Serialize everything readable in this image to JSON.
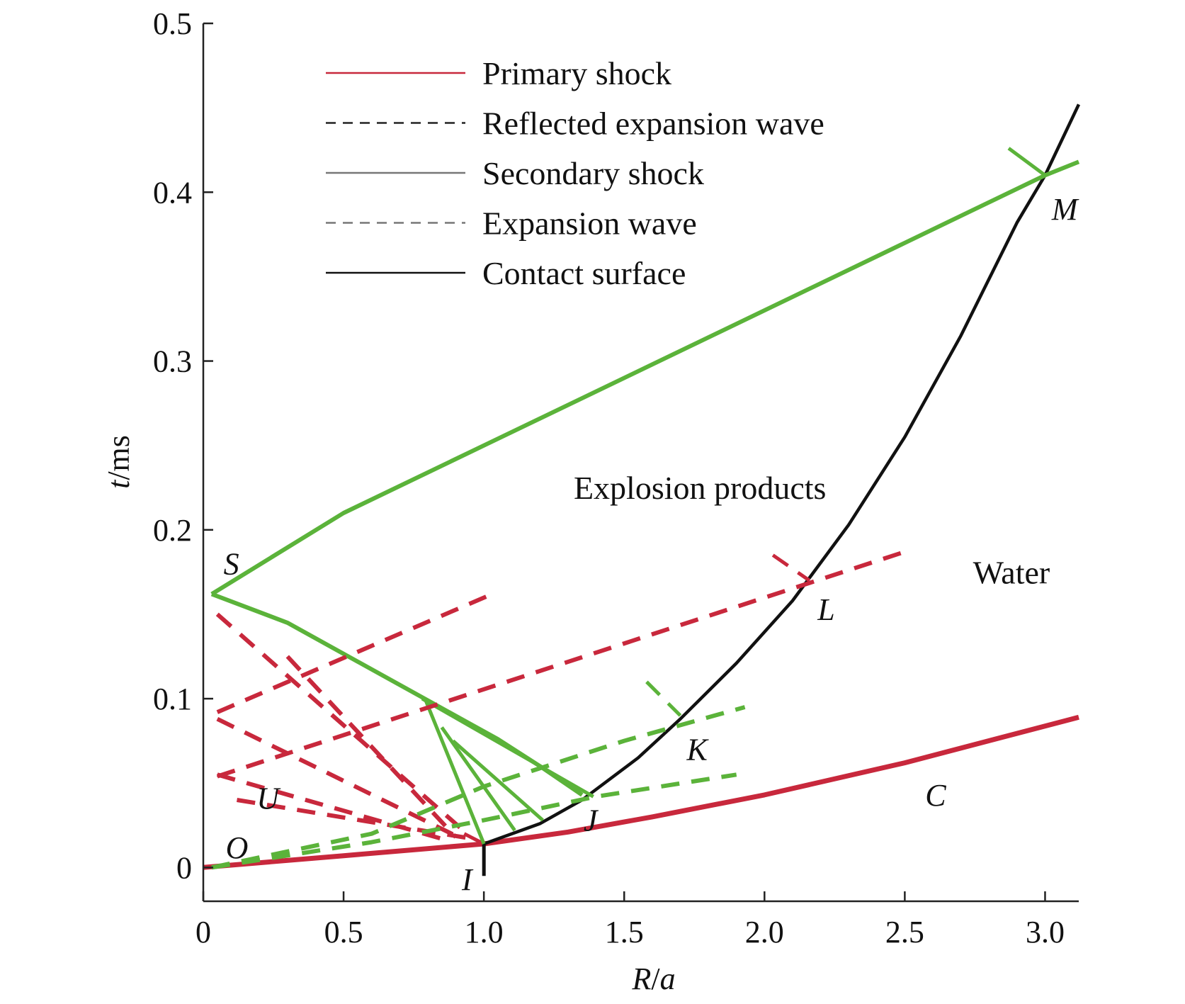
{
  "chart_data": {
    "type": "line",
    "title": "",
    "xlabel": {
      "var": "R",
      "sep": "/",
      "unit": "a"
    },
    "ylabel": {
      "var": "t",
      "sep": "/",
      "unit": "ms"
    },
    "xlim": [
      0,
      3.12
    ],
    "ylim": [
      -0.02,
      0.5
    ],
    "xticks": [
      {
        "value": 0,
        "label": "0"
      },
      {
        "value": 0.5,
        "label": "0.5"
      },
      {
        "value": 1.0,
        "label": "1.0"
      },
      {
        "value": 1.5,
        "label": "1.5"
      },
      {
        "value": 2.0,
        "label": "2.0"
      },
      {
        "value": 2.5,
        "label": "2.5"
      },
      {
        "value": 3.0,
        "label": "3.0"
      }
    ],
    "yticks": [
      {
        "value": 0,
        "label": "0"
      },
      {
        "value": 0.1,
        "label": "0.1"
      },
      {
        "value": 0.2,
        "label": "0.2"
      },
      {
        "value": 0.3,
        "label": "0.3"
      },
      {
        "value": 0.4,
        "label": "0.4"
      },
      {
        "value": 0.5,
        "label": "0.5"
      }
    ],
    "grid": false,
    "legend_position": "top",
    "legend": [
      {
        "label": "Primary shock",
        "color": "#c8283c",
        "style": "solid"
      },
      {
        "label": "Reflected expansion wave",
        "color": "#222222",
        "style": "dashed"
      },
      {
        "label": "Secondary shock",
        "color": "#777777",
        "style": "solid"
      },
      {
        "label": "Expansion wave",
        "color": "#777777",
        "style": "dashed"
      },
      {
        "label": "Contact surface",
        "color": "#111111",
        "style": "solid"
      }
    ],
    "colors": {
      "red": "#c8283c",
      "green": "#5bb33a",
      "black": "#111111"
    },
    "region_labels": [
      {
        "text": "Explosion products",
        "x": 1.77,
        "y": 0.225
      },
      {
        "text": "Water",
        "x": 2.88,
        "y": 0.175
      }
    ],
    "point_labels": [
      {
        "text": "S",
        "x": 0.1,
        "y": 0.18
      },
      {
        "text": "O",
        "x": 0.12,
        "y": 0.012
      },
      {
        "text": "U",
        "x": 0.23,
        "y": 0.041
      },
      {
        "text": "I",
        "x": 0.94,
        "y": -0.007
      },
      {
        "text": "J",
        "x": 1.38,
        "y": 0.028
      },
      {
        "text": "K",
        "x": 1.76,
        "y": 0.07
      },
      {
        "text": "L",
        "x": 2.22,
        "y": 0.153
      },
      {
        "text": "M",
        "x": 3.07,
        "y": 0.39
      },
      {
        "text": "C",
        "x": 2.61,
        "y": 0.043
      }
    ],
    "series": [
      {
        "name": "Primary shock",
        "color": "#c8283c",
        "style": "solid",
        "width": 7,
        "x": [
          0,
          0.5,
          1.0,
          1.3,
          1.6,
          2.0,
          2.5,
          3.12
        ],
        "y": [
          0,
          0.007,
          0.014,
          0.021,
          0.03,
          0.043,
          0.062,
          0.089
        ]
      },
      {
        "name": "Primary shock",
        "color": "#c8283c",
        "style": "solid",
        "width": 5,
        "x": [
          0.93,
          1.0
        ],
        "y": [
          0.02,
          0.014
        ]
      },
      {
        "name": "Contact surface",
        "color": "#111111",
        "style": "solid",
        "width": 4.5,
        "x": [
          1.0,
          1.2,
          1.35,
          1.55,
          1.7,
          1.9,
          2.1,
          2.3,
          2.5,
          2.7,
          2.9,
          3.0,
          3.12
        ],
        "y": [
          0.014,
          0.026,
          0.04,
          0.065,
          0.088,
          0.121,
          0.158,
          0.203,
          0.255,
          0.315,
          0.382,
          0.41,
          0.452
        ]
      },
      {
        "name": "Contact surface",
        "color": "#111111",
        "style": "solid",
        "width": 5,
        "x": [
          1.0,
          1.0
        ],
        "y": [
          0.014,
          -0.005
        ]
      },
      {
        "name": "Secondary shock",
        "color": "#5bb33a",
        "style": "solid",
        "width": 6,
        "x": [
          0.03,
          0.5,
          1.0,
          1.5,
          2.0,
          2.5,
          3.0,
          3.12
        ],
        "y": [
          0.162,
          0.21,
          0.25,
          0.29,
          0.33,
          0.37,
          0.41,
          0.418
        ]
      },
      {
        "name": "Secondary shock",
        "color": "#5bb33a",
        "style": "solid",
        "width": 6,
        "x": [
          0.03,
          0.3,
          0.55,
          0.8,
          1.05,
          1.2,
          1.35
        ],
        "y": [
          0.162,
          0.145,
          0.122,
          0.099,
          0.076,
          0.06,
          0.043
        ]
      },
      {
        "name": "Secondary shock",
        "color": "#5bb33a",
        "style": "solid",
        "width": 5,
        "x": [
          2.87,
          3.0
        ],
        "y": [
          0.426,
          0.41
        ]
      },
      {
        "name": "Secondary shock",
        "color": "#5bb33a",
        "style": "solid",
        "width": 5,
        "x": [
          0.79,
          1.0
        ],
        "y": [
          0.1,
          0.014
        ]
      },
      {
        "name": "Secondary shock",
        "color": "#5bb33a",
        "style": "solid",
        "width": 5,
        "x": [
          0.85,
          1.11
        ],
        "y": [
          0.083,
          0.022
        ]
      },
      {
        "name": "Secondary shock",
        "color": "#5bb33a",
        "style": "solid",
        "width": 5,
        "x": [
          0.89,
          1.21
        ],
        "y": [
          0.075,
          0.028
        ]
      },
      {
        "name": "Secondary shock",
        "color": "#5bb33a",
        "style": "solid",
        "width": 5,
        "x": [
          0.78,
          1.39
        ],
        "y": [
          0.1,
          0.042
        ]
      },
      {
        "name": "Reflected expansion wave",
        "color": "#c8283c",
        "style": "dashed",
        "width": 6,
        "x": [
          0.05,
          0.94
        ],
        "y": [
          0.15,
          0.02
        ]
      },
      {
        "name": "Reflected expansion wave",
        "color": "#c8283c",
        "style": "dashed",
        "width": 6,
        "x": [
          0.3,
          0.9
        ],
        "y": [
          0.125,
          0.018
        ]
      },
      {
        "name": "Reflected expansion wave",
        "color": "#c8283c",
        "style": "dashed",
        "width": 6,
        "x": [
          0.05,
          0.91
        ],
        "y": [
          0.088,
          0.018
        ]
      },
      {
        "name": "Reflected expansion wave",
        "color": "#c8283c",
        "style": "dashed",
        "width": 6,
        "x": [
          0.05,
          0.85
        ],
        "y": [
          0.055,
          0.017
        ]
      },
      {
        "name": "Reflected expansion wave",
        "color": "#c8283c",
        "style": "dashed",
        "width": 6,
        "x": [
          0.12,
          0.96
        ],
        "y": [
          0.04,
          0.017
        ]
      },
      {
        "name": "Reflected expansion wave",
        "color": "#c8283c",
        "style": "dashed",
        "width": 6,
        "x": [
          0.05,
          1.03
        ],
        "y": [
          0.092,
          0.162
        ]
      },
      {
        "name": "Reflected expansion wave",
        "color": "#c8283c",
        "style": "dashed",
        "width": 6,
        "x": [
          0.05,
          2.5
        ],
        "y": [
          0.054,
          0.187
        ]
      },
      {
        "name": "Reflected expansion wave",
        "color": "#c8283c",
        "style": "dashed",
        "width": 5,
        "x": [
          2.03,
          2.16
        ],
        "y": [
          0.185,
          0.17
        ]
      },
      {
        "name": "Expansion wave",
        "color": "#5bb33a",
        "style": "dashed",
        "width": 6,
        "x": [
          0.03,
          0.6,
          1.0,
          1.4,
          1.9
        ],
        "y": [
          0.0,
          0.015,
          0.028,
          0.042,
          0.055
        ]
      },
      {
        "name": "Expansion wave",
        "color": "#5bb33a",
        "style": "dashed",
        "width": 6,
        "x": [
          0.03,
          0.6,
          1.0,
          1.5,
          1.93
        ],
        "y": [
          0.0,
          0.02,
          0.048,
          0.075,
          0.095
        ]
      },
      {
        "name": "Expansion wave",
        "color": "#5bb33a",
        "style": "dashed",
        "width": 5,
        "x": [
          1.58,
          1.7
        ],
        "y": [
          0.11,
          0.09
        ]
      }
    ]
  }
}
